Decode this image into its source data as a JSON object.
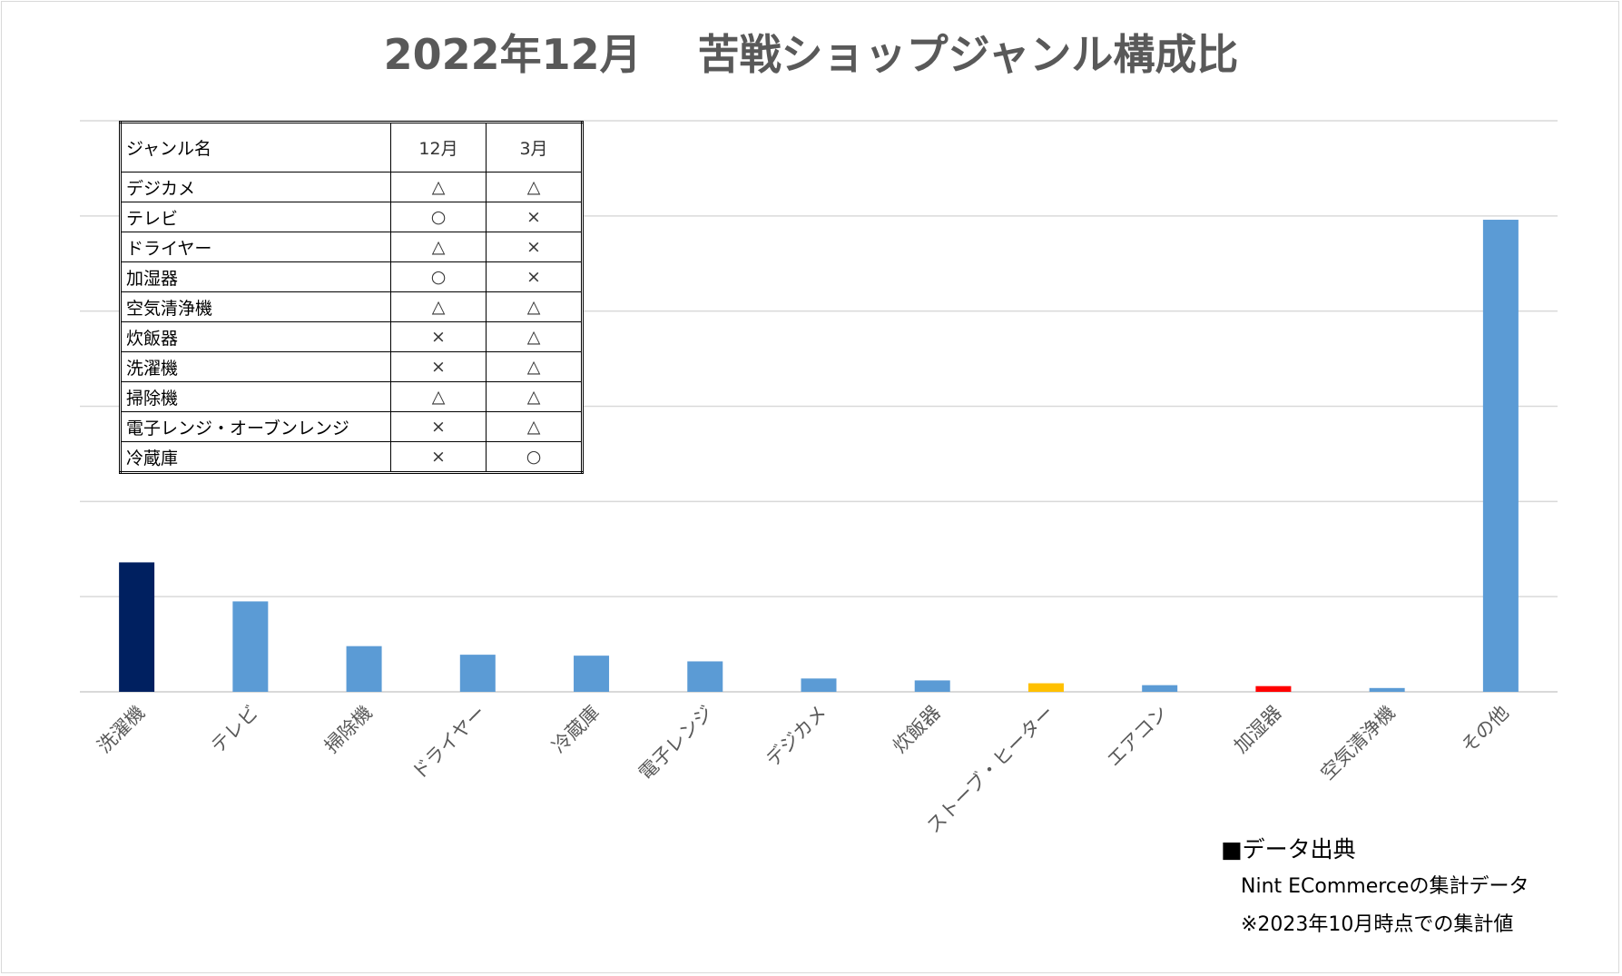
{
  "title": "2022年12月　 苦戦ショップジャンル構成比",
  "chart_data": {
    "type": "bar",
    "categories": [
      "洗濯機",
      "テレビ",
      "掃除機",
      "ドライヤー",
      "冷蔵庫",
      "電子レンジ",
      "デジカメ",
      "炊飯器",
      "ストーブ・ヒーター",
      "エアコン",
      "加湿器",
      "空気清浄機",
      "その他"
    ],
    "values": [
      13.6,
      9.5,
      4.8,
      3.9,
      3.8,
      3.2,
      1.4,
      1.2,
      0.9,
      0.7,
      0.6,
      0.4,
      49.6
    ],
    "colors": [
      "#002060",
      "#5b9bd5",
      "#5b9bd5",
      "#5b9bd5",
      "#5b9bd5",
      "#5b9bd5",
      "#5b9bd5",
      "#5b9bd5",
      "#ffc000",
      "#5b9bd5",
      "#ff0000",
      "#5b9bd5",
      "#5b9bd5"
    ],
    "ylim": [
      0,
      60
    ],
    "grid": true,
    "yaxis_labels_visible": false
  },
  "table": {
    "headers": [
      "ジャンル名",
      "12月",
      "3月"
    ],
    "rows": [
      [
        "デジカメ",
        "△",
        "△"
      ],
      [
        "テレビ",
        "○",
        "×"
      ],
      [
        "ドライヤー",
        "△",
        "×"
      ],
      [
        "加湿器",
        "○",
        "×"
      ],
      [
        "空気清浄機",
        "△",
        "△"
      ],
      [
        "炊飯器",
        "×",
        "△"
      ],
      [
        "洗濯機",
        "×",
        "△"
      ],
      [
        "掃除機",
        "△",
        "△"
      ],
      [
        "電子レンジ・オーブンレンジ",
        "×",
        "△"
      ],
      [
        "冷蔵庫",
        "×",
        "○"
      ]
    ]
  },
  "source": {
    "heading": "■データ出典",
    "lines": [
      "Nint ECommerceの集計データ",
      "※2023年10月時点での集計値"
    ]
  },
  "colors": {
    "gridline": "#d9d9d9",
    "axis_text": "#595959",
    "title": "#595959"
  }
}
